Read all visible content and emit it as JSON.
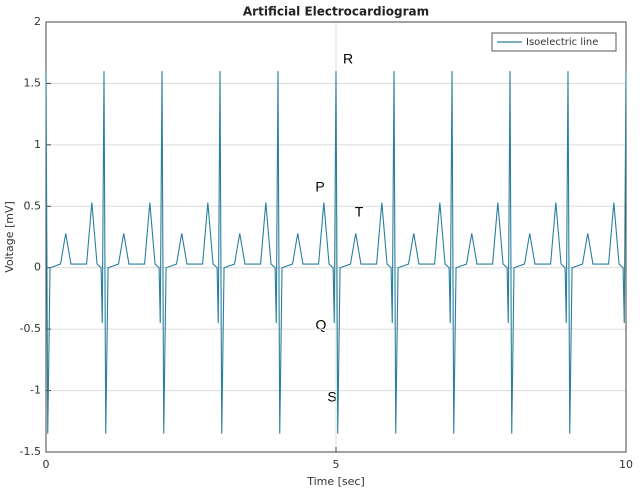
{
  "chart_data": {
    "type": "line",
    "title": "Artificial Electrocardiogram",
    "x_label": "Time [sec]",
    "y_label": "Voltage [mV]",
    "xlim": [
      0,
      10
    ],
    "xticks": [
      0,
      5,
      10
    ],
    "ylim": [
      -1.5,
      2
    ],
    "yticks": [
      -1.5,
      -1,
      -0.5,
      0,
      0.5,
      1,
      1.5,
      2
    ],
    "grid": true,
    "legend": "top-right",
    "annotations": [
      "R",
      "P",
      "T",
      "Q",
      "S"
    ],
    "series": [
      {
        "name": "Isoelectric line",
        "color": "#2a7f9e",
        "x": [
          0,
          0.03,
          0.07,
          0.25,
          0.34,
          0.43,
          0.7,
          0.79,
          0.88,
          0.95,
          0.97,
          1,
          1.03,
          1.07,
          1.25,
          1.34,
          1.43,
          1.7,
          1.79,
          1.88,
          1.95,
          1.97,
          2,
          2.03,
          2.07,
          2.25,
          2.34,
          2.43,
          2.7,
          2.79,
          2.88,
          2.95,
          2.97,
          3,
          3.03,
          3.07,
          3.25,
          3.34,
          3.43,
          3.7,
          3.79,
          3.88,
          3.95,
          3.97,
          4,
          4.03,
          4.07,
          4.25,
          4.34,
          4.43,
          4.7,
          4.79,
          4.88,
          4.95,
          4.97,
          5,
          5.03,
          5.07,
          5.25,
          5.34,
          5.43,
          5.7,
          5.79,
          5.88,
          5.95,
          5.97,
          6,
          6.03,
          6.07,
          6.25,
          6.34,
          6.43,
          6.7,
          6.79,
          6.88,
          6.95,
          6.97,
          7,
          7.03,
          7.07,
          7.25,
          7.34,
          7.43,
          7.7,
          7.79,
          7.88,
          7.95,
          7.97,
          8,
          8.03,
          8.07,
          8.25,
          8.34,
          8.43,
          8.7,
          8.79,
          8.88,
          8.95,
          8.97,
          9,
          9.03,
          9.07,
          9.25,
          9.34,
          9.43,
          9.7,
          9.79,
          9.88,
          9.95,
          9.97,
          10
        ],
        "values": [
          1.6,
          -1.35,
          0,
          0.03,
          0.28,
          0.03,
          0.03,
          0.53,
          0.03,
          0,
          -0.45,
          1.6,
          -1.35,
          0,
          0.03,
          0.28,
          0.03,
          0.03,
          0.53,
          0.03,
          0,
          -0.45,
          1.6,
          -1.35,
          0,
          0.03,
          0.28,
          0.03,
          0.03,
          0.53,
          0.03,
          0,
          -0.45,
          1.6,
          -1.35,
          0,
          0.03,
          0.28,
          0.03,
          0.03,
          0.53,
          0.03,
          0,
          -0.45,
          1.6,
          -1.35,
          0,
          0.03,
          0.28,
          0.03,
          0.03,
          0.53,
          0.03,
          0,
          -0.45,
          1.6,
          -1.35,
          0,
          0.03,
          0.28,
          0.03,
          0.03,
          0.53,
          0.03,
          0,
          -0.45,
          1.6,
          -1.35,
          0,
          0.03,
          0.28,
          0.03,
          0.03,
          0.53,
          0.03,
          0,
          -0.45,
          1.6,
          -1.35,
          0,
          0.03,
          0.28,
          0.03,
          0.03,
          0.53,
          0.03,
          0,
          -0.45,
          1.6,
          -1.35,
          0,
          0.03,
          0.28,
          0.03,
          0.03,
          0.53,
          0.03,
          0,
          -0.45,
          1.6,
          -1.35,
          0,
          0.03,
          0.28,
          0.03,
          0.03,
          0.53,
          0.03,
          0,
          -0.45,
          1.6
        ]
      }
    ]
  }
}
